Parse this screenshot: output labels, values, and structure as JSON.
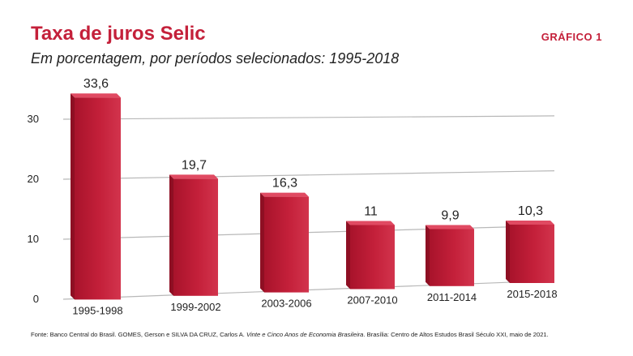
{
  "header": {
    "title": "Taxa de juros Selic",
    "subtitle": "Em porcentagem, por períodos selecionados: 1995-2018",
    "figure_label": "GRÁFICO 1"
  },
  "footer": {
    "source_prefix": "Fonte: Banco Central do Brasil. GOMES, Gerson e SILVA DA CRUZ, Carlos A. ",
    "source_title": "Vinte e Cinco Anos de Economia Brasileira",
    "source_suffix": ". Brasília: Centro de Altos Estudos Brasil Século XXI, maio de 2021."
  },
  "chart_data": {
    "type": "bar",
    "title": "Taxa de juros Selic",
    "xlabel": "",
    "ylabel": "",
    "categories": [
      "1995-1998",
      "1999-2002",
      "2003-2006",
      "2007-2010",
      "2011-2014",
      "2015-2018"
    ],
    "values": [
      33.6,
      19.7,
      16.3,
      11,
      9.9,
      10.3
    ],
    "data_labels": [
      "33,6",
      "19,7",
      "16,3",
      "11",
      "9,9",
      "10,3"
    ],
    "y_ticks": [
      0,
      10,
      20,
      30
    ],
    "ylim": [
      0,
      30
    ],
    "grid": true,
    "bar_color": "#c4203a",
    "accent_color": "#c4203a"
  }
}
